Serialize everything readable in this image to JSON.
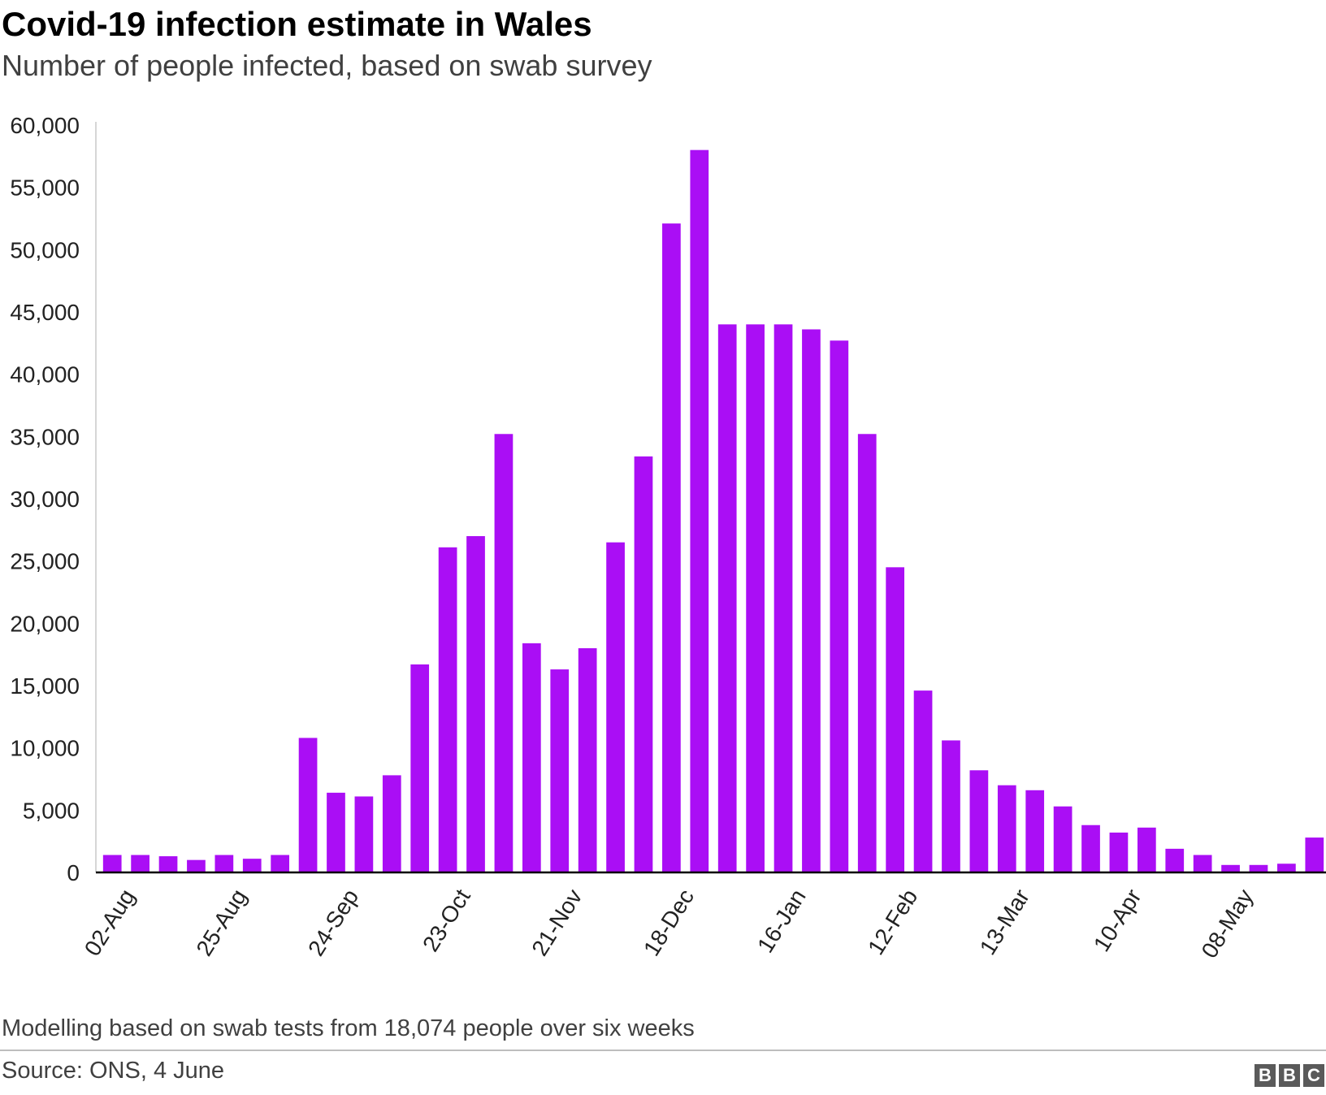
{
  "title": "Covid-19 infection estimate in Wales",
  "subtitle": "Number of people infected, based on swab survey",
  "note": "Modelling based on swab tests from 18,074 people over six weeks",
  "source": "Source: ONS, 4 June",
  "logo": {
    "letters": [
      "B",
      "B",
      "C"
    ],
    "color": "#5a5a5a"
  },
  "chart_data": {
    "type": "bar",
    "title": "Covid-19 infection estimate in Wales",
    "subtitle": "Number of people infected, based on swab survey",
    "xlabel": "",
    "ylabel": "",
    "ylim": [
      0,
      60000
    ],
    "yticks": [
      0,
      5000,
      10000,
      15000,
      20000,
      25000,
      30000,
      35000,
      40000,
      45000,
      50000,
      55000,
      60000
    ],
    "ytick_labels": [
      "0",
      "5,000",
      "10,000",
      "15,000",
      "20,000",
      "25,000",
      "30,000",
      "35,000",
      "40,000",
      "45,000",
      "50,000",
      "55,000",
      "60,000"
    ],
    "xtick_labels": [
      "02-Aug",
      "25-Aug",
      "24-Sep",
      "23-Oct",
      "21-Nov",
      "18-Dec",
      "16-Jan",
      "12-Feb",
      "13-Mar",
      "10-Apr",
      "08-May"
    ],
    "xtick_every": 4,
    "bar_color": "#aa0ef5",
    "grid": false,
    "values": [
      1400,
      1400,
      1300,
      1000,
      1400,
      1100,
      1400,
      10800,
      6400,
      6100,
      7800,
      16700,
      26100,
      27000,
      35200,
      18400,
      16300,
      18000,
      26500,
      33400,
      52100,
      58000,
      44000,
      44000,
      44000,
      43600,
      42700,
      35200,
      24500,
      14600,
      10600,
      8200,
      7000,
      6600,
      5300,
      3800,
      3200,
      3600,
      1900,
      1400,
      600,
      600,
      700,
      2800
    ]
  }
}
